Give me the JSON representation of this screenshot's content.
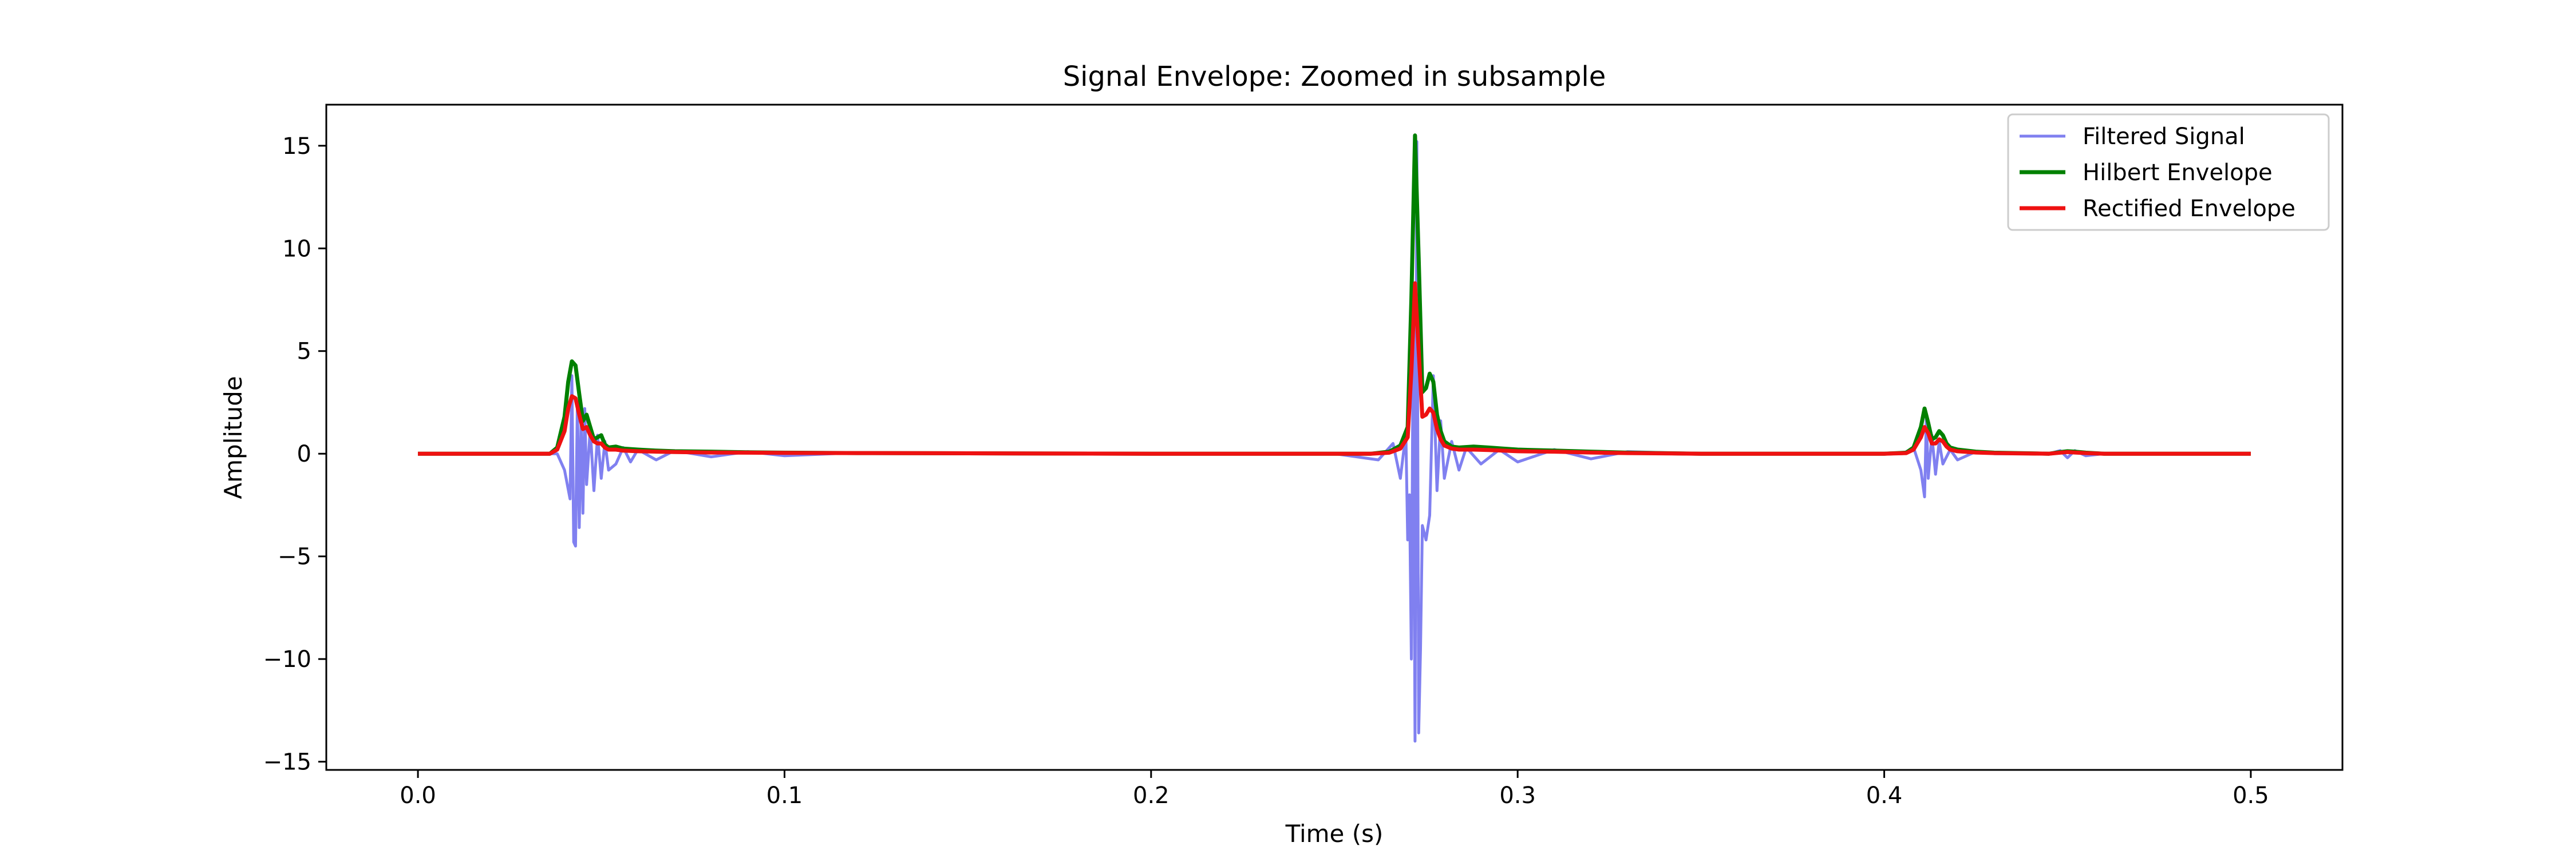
{
  "chart_data": {
    "type": "line",
    "title": "Signal Envelope: Zoomed in subsample",
    "xlabel": "Time (s)",
    "ylabel": "Amplitude",
    "xlim": [
      -0.025,
      0.525
    ],
    "ylim": [
      -15.4,
      17.0
    ],
    "xticks": [
      0.0,
      0.1,
      0.2,
      0.3,
      0.4,
      0.5
    ],
    "xtick_labels": [
      "0.0",
      "0.1",
      "0.2",
      "0.3",
      "0.4",
      "0.5"
    ],
    "yticks": [
      -15,
      -10,
      -5,
      0,
      5,
      10,
      15
    ],
    "ytick_labels": [
      "−15",
      "−10",
      "−5",
      "0",
      "5",
      "10",
      "15"
    ],
    "grid": false,
    "legend_position": "top-right",
    "series": [
      {
        "name": "Filtered Signal",
        "color": "#8080f0",
        "x": [
          0.0,
          0.038,
          0.04,
          0.0415,
          0.042,
          0.0425,
          0.043,
          0.0435,
          0.044,
          0.0445,
          0.045,
          0.0455,
          0.046,
          0.047,
          0.048,
          0.049,
          0.05,
          0.051,
          0.052,
          0.054,
          0.056,
          0.058,
          0.06,
          0.065,
          0.07,
          0.08,
          0.09,
          0.1,
          0.12,
          0.15,
          0.2,
          0.25,
          0.262,
          0.266,
          0.268,
          0.2695,
          0.27,
          0.2705,
          0.271,
          0.2715,
          0.272,
          0.2725,
          0.273,
          0.2735,
          0.274,
          0.275,
          0.276,
          0.277,
          0.278,
          0.279,
          0.28,
          0.282,
          0.284,
          0.286,
          0.29,
          0.295,
          0.3,
          0.31,
          0.32,
          0.33,
          0.35,
          0.38,
          0.405,
          0.408,
          0.41,
          0.411,
          0.4115,
          0.412,
          0.413,
          0.414,
          0.415,
          0.416,
          0.418,
          0.42,
          0.425,
          0.43,
          0.445,
          0.448,
          0.45,
          0.452,
          0.455,
          0.46,
          0.5
        ],
        "y": [
          0.0,
          0.0,
          -0.8,
          -2.2,
          3.8,
          -4.3,
          -4.5,
          2.5,
          -3.6,
          1.5,
          -2.9,
          2.2,
          -1.5,
          1.2,
          -1.8,
          0.9,
          -1.2,
          0.6,
          -0.8,
          -0.5,
          0.3,
          -0.4,
          0.2,
          -0.3,
          0.15,
          -0.15,
          0.1,
          -0.1,
          0.05,
          0.0,
          0.0,
          0.0,
          -0.3,
          0.5,
          -1.2,
          1.0,
          -4.2,
          -2.0,
          -10.0,
          6.5,
          -14.0,
          15.2,
          -13.6,
          -9.5,
          -3.5,
          -4.2,
          -3.0,
          3.8,
          -1.8,
          1.6,
          -1.2,
          0.6,
          -0.8,
          0.3,
          -0.5,
          0.2,
          -0.4,
          0.2,
          -0.25,
          0.1,
          0.0,
          0.0,
          0.0,
          0.3,
          -0.8,
          -2.1,
          1.8,
          -1.2,
          0.9,
          -1.0,
          0.6,
          -0.5,
          0.2,
          -0.3,
          0.1,
          0.0,
          0.0,
          0.15,
          -0.2,
          0.15,
          -0.1,
          0.0,
          0.0
        ]
      },
      {
        "name": "Hilbert Envelope",
        "color": "#008000",
        "x": [
          0.0,
          0.036,
          0.038,
          0.04,
          0.041,
          0.042,
          0.043,
          0.044,
          0.045,
          0.046,
          0.047,
          0.048,
          0.049,
          0.05,
          0.051,
          0.052,
          0.054,
          0.056,
          0.06,
          0.065,
          0.07,
          0.08,
          0.09,
          0.1,
          0.12,
          0.15,
          0.2,
          0.26,
          0.265,
          0.268,
          0.27,
          0.271,
          0.272,
          0.273,
          0.274,
          0.275,
          0.276,
          0.277,
          0.278,
          0.279,
          0.28,
          0.282,
          0.284,
          0.288,
          0.292,
          0.296,
          0.3,
          0.31,
          0.32,
          0.33,
          0.35,
          0.4,
          0.406,
          0.408,
          0.41,
          0.411,
          0.412,
          0.413,
          0.414,
          0.415,
          0.416,
          0.417,
          0.418,
          0.42,
          0.425,
          0.43,
          0.445,
          0.448,
          0.45,
          0.452,
          0.455,
          0.46,
          0.5
        ],
        "y": [
          0.0,
          0.0,
          0.3,
          1.8,
          3.5,
          4.5,
          4.3,
          2.9,
          1.6,
          1.9,
          1.3,
          0.7,
          0.8,
          0.9,
          0.45,
          0.3,
          0.35,
          0.25,
          0.2,
          0.15,
          0.12,
          0.1,
          0.07,
          0.05,
          0.03,
          0.02,
          0.0,
          0.0,
          0.1,
          0.4,
          1.3,
          7.5,
          15.5,
          9.5,
          3.0,
          3.2,
          3.9,
          3.5,
          1.9,
          1.1,
          0.6,
          0.35,
          0.3,
          0.35,
          0.3,
          0.25,
          0.2,
          0.15,
          0.1,
          0.05,
          0.0,
          0.0,
          0.05,
          0.3,
          1.3,
          2.2,
          1.5,
          0.7,
          0.8,
          1.1,
          0.9,
          0.5,
          0.3,
          0.2,
          0.1,
          0.05,
          0.0,
          0.08,
          0.12,
          0.1,
          0.05,
          0.0,
          0.0
        ]
      },
      {
        "name": "Rectified Envelope",
        "color": "#ee1111",
        "x": [
          0.0,
          0.036,
          0.038,
          0.04,
          0.041,
          0.042,
          0.043,
          0.044,
          0.045,
          0.046,
          0.047,
          0.048,
          0.049,
          0.05,
          0.051,
          0.052,
          0.054,
          0.056,
          0.06,
          0.065,
          0.07,
          0.08,
          0.09,
          0.1,
          0.12,
          0.15,
          0.2,
          0.26,
          0.265,
          0.268,
          0.27,
          0.271,
          0.272,
          0.273,
          0.274,
          0.275,
          0.276,
          0.277,
          0.278,
          0.279,
          0.28,
          0.282,
          0.284,
          0.288,
          0.292,
          0.296,
          0.3,
          0.31,
          0.32,
          0.33,
          0.35,
          0.4,
          0.406,
          0.408,
          0.41,
          0.411,
          0.412,
          0.413,
          0.414,
          0.415,
          0.416,
          0.417,
          0.418,
          0.42,
          0.425,
          0.43,
          0.445,
          0.448,
          0.45,
          0.452,
          0.455,
          0.46,
          0.5
        ],
        "y": [
          0.0,
          0.0,
          0.2,
          1.1,
          2.2,
          2.8,
          2.7,
          1.9,
          1.2,
          1.3,
          0.9,
          0.6,
          0.5,
          0.5,
          0.3,
          0.2,
          0.2,
          0.15,
          0.12,
          0.1,
          0.08,
          0.06,
          0.05,
          0.04,
          0.03,
          0.02,
          0.0,
          0.0,
          0.05,
          0.25,
          0.8,
          4.0,
          8.3,
          5.0,
          1.8,
          1.9,
          2.2,
          2.0,
          1.2,
          0.7,
          0.4,
          0.25,
          0.2,
          0.2,
          0.18,
          0.15,
          0.12,
          0.1,
          0.06,
          0.03,
          0.0,
          0.0,
          0.03,
          0.2,
          0.8,
          1.3,
          1.0,
          0.5,
          0.5,
          0.7,
          0.6,
          0.35,
          0.2,
          0.12,
          0.06,
          0.03,
          0.0,
          0.05,
          0.08,
          0.06,
          0.03,
          0.0,
          0.0
        ]
      }
    ]
  }
}
